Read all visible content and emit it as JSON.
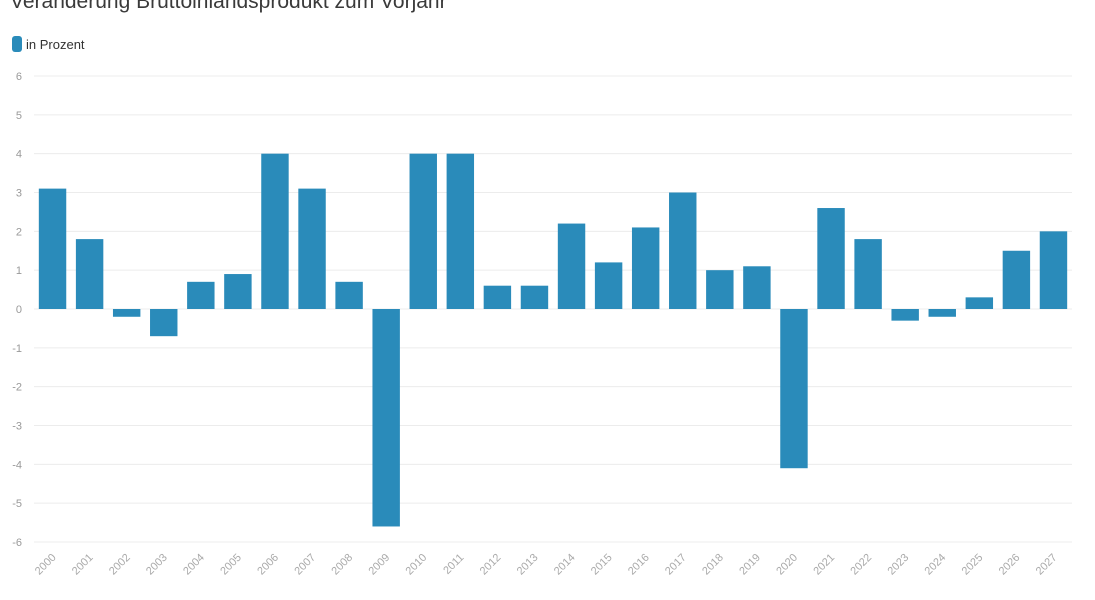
{
  "chart_data": {
    "type": "bar",
    "title": "Veränderung Bruttoinlandsprodukt zum Vorjahr",
    "legend": {
      "label": "in Prozent",
      "placement": "top-left"
    },
    "colors": {
      "bar": "#2a8bba",
      "grid": "#ececec"
    },
    "grid": true,
    "ylim": [
      -6,
      6
    ],
    "yticks": [
      "6",
      "5",
      "4",
      "3",
      "2",
      "1",
      "0",
      "-1",
      "-2",
      "-3",
      "-4",
      "-5",
      "-6"
    ],
    "categories": [
      "2000",
      "2001",
      "2002",
      "2003",
      "2004",
      "2005",
      "2006",
      "2007",
      "2008",
      "2009",
      "2010",
      "2011",
      "2012",
      "2013",
      "2014",
      "2015",
      "2016",
      "2017",
      "2018",
      "2019",
      "2020",
      "2021",
      "2022",
      "2023",
      "2024",
      "2025",
      "2026",
      "2027"
    ],
    "values": [
      3.1,
      1.8,
      -0.2,
      -0.7,
      0.7,
      0.9,
      4.0,
      3.1,
      0.7,
      -5.6,
      4.0,
      4.0,
      0.6,
      0.6,
      2.2,
      1.2,
      2.1,
      3.0,
      1.0,
      1.1,
      -4.1,
      2.6,
      1.8,
      -0.3,
      -0.2,
      0.3,
      1.5,
      2.0
    ]
  }
}
